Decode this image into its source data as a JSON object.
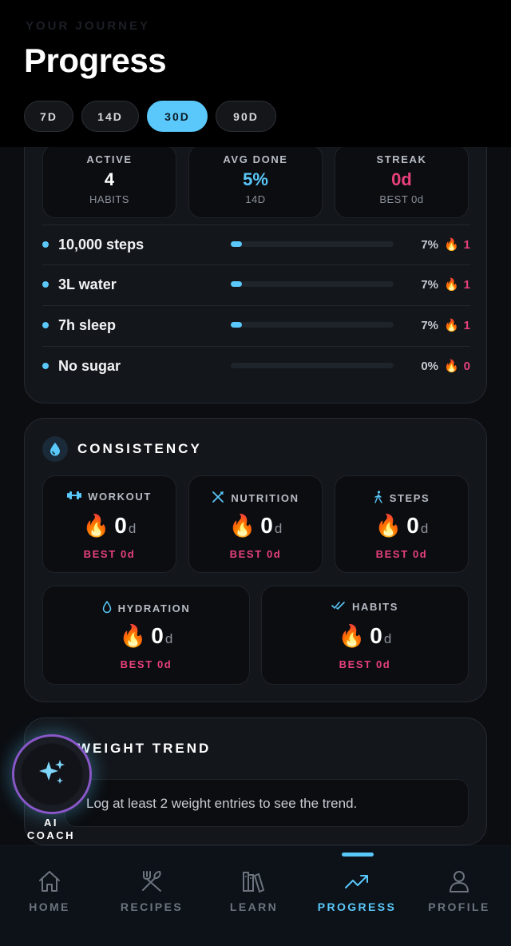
{
  "header": {
    "eyebrow": "YOUR JOURNEY",
    "title": "Progress",
    "ranges": [
      {
        "label": "7D",
        "active": false
      },
      {
        "label": "14D",
        "active": false
      },
      {
        "label": "30D",
        "active": true
      },
      {
        "label": "90D",
        "active": false
      }
    ]
  },
  "habits_card": {
    "stats": [
      {
        "label": "ACTIVE",
        "value": "4",
        "sub": "HABITS",
        "color": "#ffffff"
      },
      {
        "label": "AVG DONE",
        "value": "5%",
        "sub": "14D",
        "color": "#5ac8fa"
      },
      {
        "label": "STREAK",
        "value": "0d",
        "sub": "BEST 0d",
        "color": "#e8417a"
      }
    ],
    "habits": [
      {
        "name": "10,000 steps",
        "progress": 0.07,
        "percent": "7%",
        "streak": "1"
      },
      {
        "name": "3L water",
        "progress": 0.07,
        "percent": "7%",
        "streak": "1"
      },
      {
        "name": "7h sleep",
        "progress": 0.07,
        "percent": "7%",
        "streak": "1"
      },
      {
        "name": "No sugar",
        "progress": 0.0,
        "percent": "0%",
        "streak": "0"
      }
    ]
  },
  "consistency": {
    "title": "CONSISTENCY",
    "icon": "drop-icon",
    "tiles": [
      {
        "label": "WORKOUT",
        "icon": "dumbbell-icon",
        "value": "0",
        "unit": "d",
        "best": "BEST 0d"
      },
      {
        "label": "NUTRITION",
        "icon": "utensils-icon",
        "value": "0",
        "unit": "d",
        "best": "BEST 0d"
      },
      {
        "label": "STEPS",
        "icon": "walking-icon",
        "value": "0",
        "unit": "d",
        "best": "BEST 0d"
      },
      {
        "label": "HYDRATION",
        "icon": "water-drop-icon",
        "value": "0",
        "unit": "d",
        "best": "BEST 0d"
      },
      {
        "label": "HABITS",
        "icon": "double-check-icon",
        "value": "0",
        "unit": "d",
        "best": "BEST 0d"
      }
    ]
  },
  "weight_trend": {
    "title": "WEIGHT TREND",
    "message": "Log at least 2 weight entries to see the trend."
  },
  "coach": {
    "label_line1": "AI",
    "label_line2": "COACH",
    "icon": "sparkles-icon"
  },
  "nav": {
    "items": [
      {
        "label": "HOME",
        "icon": "home-icon",
        "active": false
      },
      {
        "label": "RECIPES",
        "icon": "fork-knife-icon",
        "active": false
      },
      {
        "label": "LEARN",
        "icon": "books-icon",
        "active": false
      },
      {
        "label": "PROGRESS",
        "icon": "trend-up-icon",
        "active": true
      },
      {
        "label": "PROFILE",
        "icon": "person-icon",
        "active": false
      }
    ]
  },
  "colors": {
    "accent": "#5ac8fa",
    "streak": "#e8417a",
    "background": "#0b0d11"
  }
}
